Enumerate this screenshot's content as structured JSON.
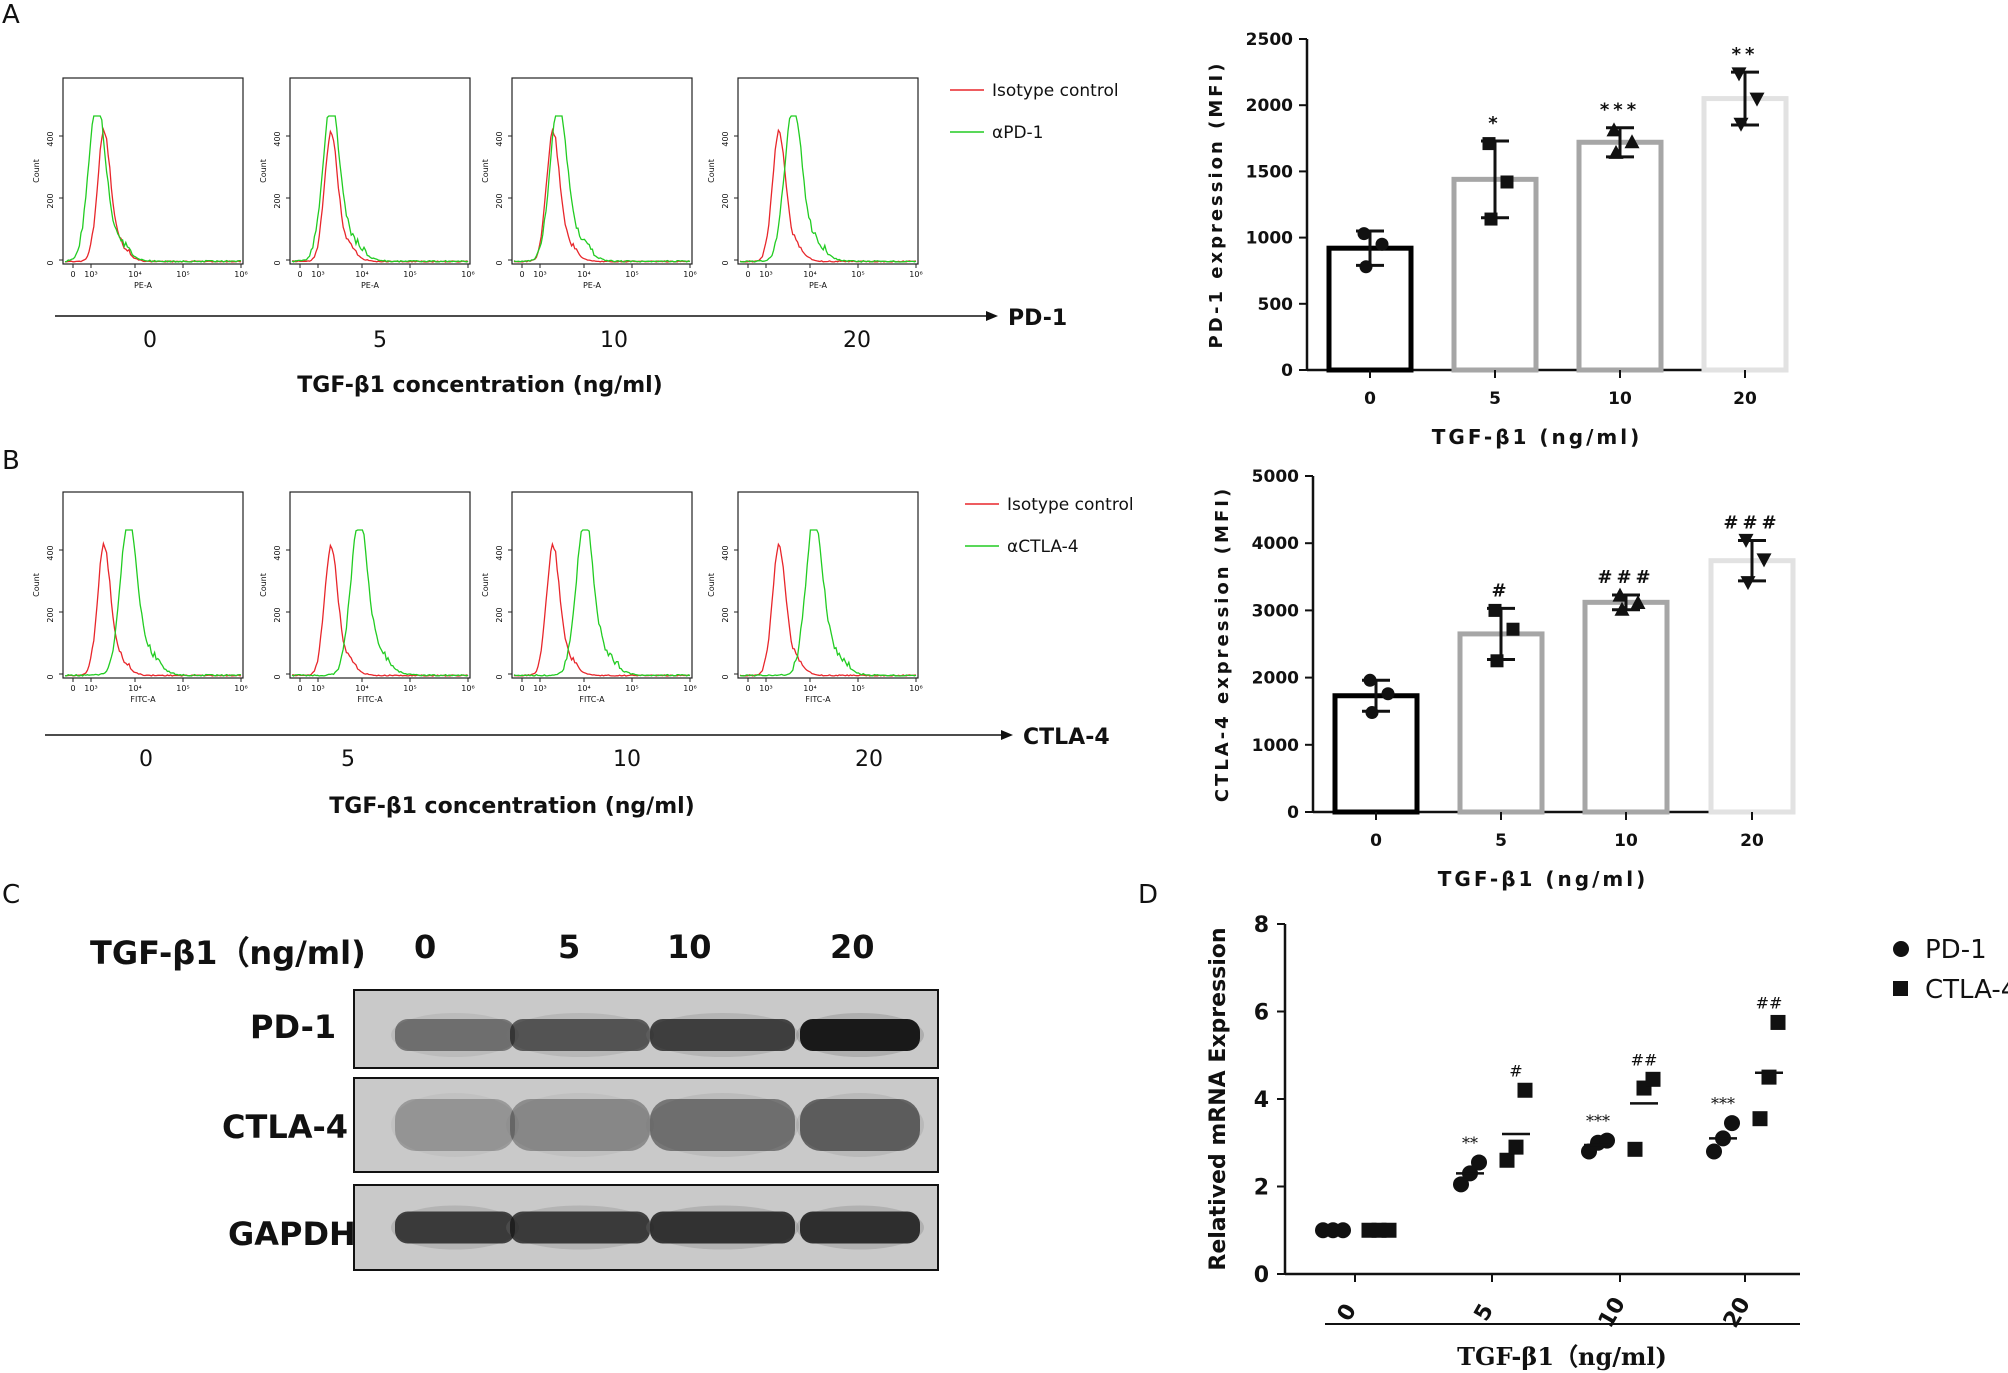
{
  "panels": [
    "A",
    "B",
    "C",
    "D"
  ],
  "flow_A": {
    "doses": [
      "0",
      "5",
      "10",
      "20"
    ],
    "xaxis_label": "PE-A",
    "yaxis_label": "Count",
    "y_ticks": [
      "0",
      "200",
      "400"
    ],
    "x_ticks": [
      "0",
      "10³",
      "10⁴",
      "10⁵",
      "10⁶"
    ],
    "legend": [
      "Isotype control",
      "αPD-1"
    ],
    "arrow_label": "PD-1",
    "concentration_label": "TGF-β1 concentration (ng/ml)",
    "green_peak": [
      0.18,
      0.22,
      0.25,
      0.3
    ]
  },
  "flow_B": {
    "doses": [
      "0",
      "5",
      "10",
      "20"
    ],
    "xaxis_label": "FITC-A",
    "yaxis_label": "Count",
    "y_ticks": [
      "0",
      "200",
      "400"
    ],
    "x_ticks": [
      "0",
      "10³",
      "10⁴",
      "10⁵",
      "10⁶"
    ],
    "legend": [
      "Isotype control",
      "αCTLA-4"
    ],
    "arrow_label": "CTLA-4",
    "concentration_label": "TGF-β1 concentration (ng/ml)",
    "green_peak": [
      0.36,
      0.38,
      0.4,
      0.42
    ]
  },
  "colors": {
    "isotype": "#e8262b",
    "antibody": "#22cc22",
    "bar_0": "#000000",
    "bar_5": "#a6a6a6",
    "bar_10": "#a6a6a6",
    "bar_20": "#e2e2e2"
  },
  "chart_data": [
    {
      "type": "bar",
      "panel": "A",
      "categories": [
        "0",
        "5",
        "10",
        "20"
      ],
      "values": [
        920,
        1440,
        1720,
        2050
      ],
      "errors": [
        130,
        290,
        110,
        200
      ],
      "points": [
        [
          1030,
          950,
          780
        ],
        [
          1710,
          1420,
          1140
        ],
        [
          1810,
          1720,
          1640
        ],
        [
          2240,
          2050,
          1860
        ]
      ],
      "significance": [
        "",
        "*",
        "***",
        "**"
      ],
      "xlabel": "TGF-β1 (ng/ml)",
      "ylabel": "PD-1 expression (MFI)",
      "ylim": [
        0,
        2500
      ],
      "yticks": [
        0,
        500,
        1000,
        1500,
        2000,
        2500
      ]
    },
    {
      "type": "bar",
      "panel": "B",
      "categories": [
        "0",
        "5",
        "10",
        "20"
      ],
      "values": [
        1730,
        2650,
        3120,
        3740
      ],
      "errors": [
        230,
        380,
        110,
        300
      ],
      "points": [
        [
          1960,
          1760,
          1480
        ],
        [
          3000,
          2720,
          2250
        ],
        [
          3220,
          3110,
          3010
        ],
        [
          4050,
          3760,
          3420
        ]
      ],
      "significance": [
        "",
        "#",
        "###",
        "###"
      ],
      "xlabel": "TGF-β1 (ng/ml)",
      "ylabel": "CTLA-4 expression (MFI)",
      "ylim": [
        0,
        5000
      ],
      "yticks": [
        0,
        1000,
        2000,
        3000,
        4000,
        5000
      ]
    },
    {
      "type": "scatter",
      "panel": "D",
      "categories": [
        "0",
        "5",
        "10",
        "20"
      ],
      "series": [
        {
          "name": "PD-1",
          "marker": "circle",
          "points": [
            [
              1.0,
              1.0,
              1.0
            ],
            [
              2.05,
              2.3,
              2.55
            ],
            [
              2.8,
              3.0,
              3.05
            ],
            [
              2.8,
              3.1,
              3.45
            ]
          ],
          "means": [
            1.0,
            2.3,
            2.95,
            3.1
          ],
          "significance": [
            "",
            "**",
            "***",
            "***"
          ]
        },
        {
          "name": "CTLA-4",
          "marker": "square",
          "points": [
            [
              1.0,
              1.0,
              1.0
            ],
            [
              2.6,
              2.9,
              4.2
            ],
            [
              2.85,
              4.25,
              4.45
            ],
            [
              3.55,
              4.5,
              5.75
            ]
          ],
          "means": [
            1.0,
            3.2,
            3.9,
            4.6
          ],
          "significance": [
            "",
            "#",
            "##",
            "##"
          ]
        }
      ],
      "xlabel": "TGF-β1（ng/ml)",
      "ylabel": "Relatived mRNA Expression",
      "ylim": [
        0,
        8
      ],
      "yticks": [
        0,
        2,
        4,
        6,
        8
      ],
      "legend": "top-right"
    }
  ],
  "blot": {
    "header_label": "TGF-β1（ng/ml)",
    "lanes": [
      "0",
      "5",
      "10",
      "20"
    ],
    "rows": [
      {
        "name": "PD-1",
        "intensity": [
          0.45,
          0.6,
          0.72,
          0.95
        ]
      },
      {
        "name": "CTLA-4",
        "intensity": [
          0.25,
          0.32,
          0.45,
          0.55
        ]
      },
      {
        "name": "GAPDH",
        "intensity": [
          0.75,
          0.75,
          0.8,
          0.82
        ]
      }
    ]
  }
}
